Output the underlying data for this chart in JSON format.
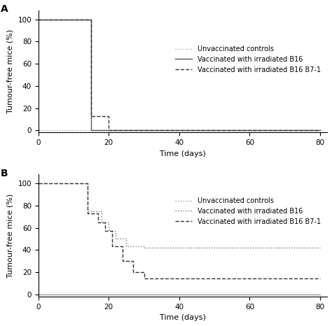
{
  "panel_A": {
    "label": "A",
    "unvaccinated": {
      "x": [
        0,
        80
      ],
      "y": [
        0,
        0
      ],
      "style": "dotted",
      "color": "#aaaaaa"
    },
    "irr_b16": {
      "x": [
        0,
        15,
        15,
        80
      ],
      "y": [
        100,
        100,
        0,
        0
      ],
      "style": "solid",
      "color": "#555555"
    },
    "irr_b16_b71": {
      "x": [
        0,
        15,
        15,
        20,
        20,
        80
      ],
      "y": [
        100,
        100,
        13,
        13,
        0,
        0
      ],
      "style": "dashed",
      "color": "#333333"
    },
    "xlabel": "Time (days)",
    "ylabel": "Tumour-free mice (%)",
    "xlim": [
      0,
      82
    ],
    "ylim": [
      -2,
      108
    ],
    "yticks": [
      0,
      20,
      40,
      60,
      80,
      100
    ],
    "xticks": [
      0,
      20,
      40,
      60,
      80
    ]
  },
  "panel_B": {
    "label": "B",
    "unvaccinated": {
      "x": [
        0,
        80
      ],
      "y": [
        0,
        0
      ],
      "style": "solid",
      "color": "#999999"
    },
    "irr_b16": {
      "x": [
        0,
        14,
        14,
        18,
        18,
        20,
        20,
        22,
        22,
        25,
        25,
        30,
        30,
        80
      ],
      "y": [
        100,
        100,
        75,
        75,
        65,
        65,
        57,
        57,
        50,
        50,
        43,
        43,
        42,
        42
      ],
      "style": "dotted",
      "color": "#777777"
    },
    "irr_b16_b71": {
      "x": [
        0,
        14,
        14,
        17,
        17,
        19,
        19,
        21,
        21,
        24,
        24,
        27,
        27,
        30,
        30,
        33,
        33,
        80
      ],
      "y": [
        100,
        100,
        73,
        73,
        65,
        65,
        57,
        57,
        43,
        43,
        30,
        30,
        20,
        20,
        14,
        14,
        14,
        14
      ],
      "style": "dashed",
      "color": "#333333"
    },
    "xlabel": "Time (days)",
    "ylabel": "Tumour-free mice (%)",
    "xlim": [
      0,
      82
    ],
    "ylim": [
      -2,
      108
    ],
    "yticks": [
      0,
      20,
      40,
      60,
      80,
      100
    ],
    "xticks": [
      0,
      20,
      40,
      60,
      80
    ]
  },
  "legend_labels": [
    "Unvaccinated controls",
    "Vaccinated with irradiated B16",
    "Vaccinated with irradiated B16 B7-1"
  ],
  "background_color": "#ffffff",
  "fontsize_label": 8,
  "fontsize_legend": 7,
  "fontsize_tick": 7.5,
  "fontsize_panel_label": 10,
  "linewidth": 1.0
}
